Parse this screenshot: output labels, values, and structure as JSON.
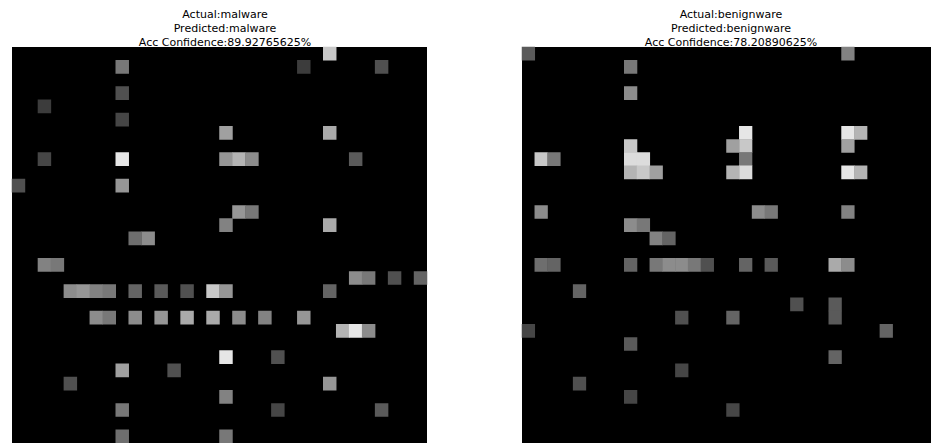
{
  "chart_data": [
    {
      "type": "heatmap",
      "title": [
        "Actual:malware",
        "Predicted:malware",
        "Acc Confidence:89.92765625%"
      ],
      "tick_labels": false,
      "grid_size": [
        32,
        30
      ],
      "color_range": [
        0,
        255
      ],
      "cells": [
        [
          8,
          1,
          120
        ],
        [
          24,
          0,
          200
        ],
        [
          28,
          1,
          80
        ],
        [
          22,
          1,
          60
        ],
        [
          2,
          4,
          60
        ],
        [
          8,
          3,
          80
        ],
        [
          8,
          5,
          70
        ],
        [
          8,
          8,
          230
        ],
        [
          8,
          10,
          150
        ],
        [
          16,
          6,
          160
        ],
        [
          16,
          8,
          150
        ],
        [
          17,
          8,
          180
        ],
        [
          18,
          8,
          140
        ],
        [
          24,
          6,
          170
        ],
        [
          26,
          8,
          90
        ],
        [
          0,
          10,
          80
        ],
        [
          2,
          8,
          70
        ],
        [
          17,
          12,
          150
        ],
        [
          18,
          12,
          120
        ],
        [
          24,
          13,
          170
        ],
        [
          16,
          13,
          130
        ],
        [
          10,
          14,
          140
        ],
        [
          9,
          14,
          110
        ],
        [
          2,
          16,
          130
        ],
        [
          3,
          16,
          120
        ],
        [
          26,
          17,
          140
        ],
        [
          27,
          17,
          120
        ],
        [
          29,
          17,
          80
        ],
        [
          31,
          17,
          100
        ],
        [
          4,
          18,
          140
        ],
        [
          5,
          18,
          150
        ],
        [
          6,
          18,
          130
        ],
        [
          7,
          18,
          120
        ],
        [
          9,
          18,
          100
        ],
        [
          11,
          18,
          90
        ],
        [
          13,
          18,
          80
        ],
        [
          15,
          18,
          200
        ],
        [
          16,
          18,
          150
        ],
        [
          24,
          18,
          100
        ],
        [
          6,
          20,
          140
        ],
        [
          7,
          20,
          120
        ],
        [
          9,
          20,
          140
        ],
        [
          11,
          20,
          150
        ],
        [
          13,
          20,
          170
        ],
        [
          15,
          20,
          170
        ],
        [
          17,
          20,
          140
        ],
        [
          19,
          20,
          130
        ],
        [
          22,
          20,
          150
        ],
        [
          25,
          21,
          180
        ],
        [
          26,
          21,
          230
        ],
        [
          27,
          21,
          140
        ],
        [
          16,
          23,
          230
        ],
        [
          20,
          23,
          80
        ],
        [
          8,
          24,
          160
        ],
        [
          12,
          24,
          80
        ],
        [
          24,
          25,
          150
        ],
        [
          4,
          25,
          80
        ],
        [
          16,
          26,
          130
        ],
        [
          8,
          27,
          120
        ],
        [
          28,
          27,
          90
        ],
        [
          20,
          27,
          70
        ],
        [
          8,
          29,
          110
        ],
        [
          16,
          29,
          120
        ]
      ]
    },
    {
      "type": "heatmap",
      "title": [
        "Actual:benignware",
        "Predicted:benignware",
        "Acc Confidence:78.20890625%"
      ],
      "tick_labels": false,
      "grid_size": [
        32,
        30
      ],
      "color_range": [
        0,
        255
      ],
      "cells": [
        [
          0,
          0,
          90
        ],
        [
          8,
          1,
          120
        ],
        [
          8,
          3,
          140
        ],
        [
          25,
          0,
          130
        ],
        [
          1,
          8,
          200
        ],
        [
          2,
          8,
          120
        ],
        [
          8,
          7,
          200
        ],
        [
          8,
          8,
          220
        ],
        [
          9,
          8,
          220
        ],
        [
          8,
          9,
          180
        ],
        [
          9,
          9,
          200
        ],
        [
          10,
          9,
          160
        ],
        [
          17,
          6,
          230
        ],
        [
          17,
          7,
          200
        ],
        [
          16,
          7,
          160
        ],
        [
          17,
          8,
          120
        ],
        [
          17,
          9,
          220
        ],
        [
          16,
          9,
          180
        ],
        [
          25,
          6,
          230
        ],
        [
          26,
          6,
          180
        ],
        [
          25,
          7,
          160
        ],
        [
          25,
          9,
          230
        ],
        [
          26,
          9,
          180
        ],
        [
          1,
          12,
          140
        ],
        [
          8,
          13,
          140
        ],
        [
          9,
          13,
          120
        ],
        [
          10,
          14,
          130
        ],
        [
          11,
          14,
          100
        ],
        [
          18,
          12,
          140
        ],
        [
          19,
          12,
          120
        ],
        [
          25,
          12,
          130
        ],
        [
          1,
          16,
          110
        ],
        [
          2,
          16,
          100
        ],
        [
          8,
          16,
          100
        ],
        [
          10,
          16,
          120
        ],
        [
          11,
          16,
          140
        ],
        [
          12,
          16,
          140
        ],
        [
          13,
          16,
          120
        ],
        [
          14,
          16,
          80
        ],
        [
          17,
          16,
          100
        ],
        [
          19,
          16,
          90
        ],
        [
          24,
          16,
          170
        ],
        [
          25,
          16,
          140
        ],
        [
          4,
          18,
          100
        ],
        [
          12,
          20,
          80
        ],
        [
          16,
          20,
          100
        ],
        [
          21,
          19,
          80
        ],
        [
          24,
          19,
          90
        ],
        [
          24,
          20,
          90
        ],
        [
          28,
          21,
          100
        ],
        [
          0,
          21,
          70
        ],
        [
          8,
          22,
          90
        ],
        [
          4,
          25,
          80
        ],
        [
          12,
          24,
          70
        ],
        [
          16,
          27,
          70
        ],
        [
          24,
          23,
          100
        ],
        [
          8,
          26,
          70
        ]
      ]
    }
  ]
}
